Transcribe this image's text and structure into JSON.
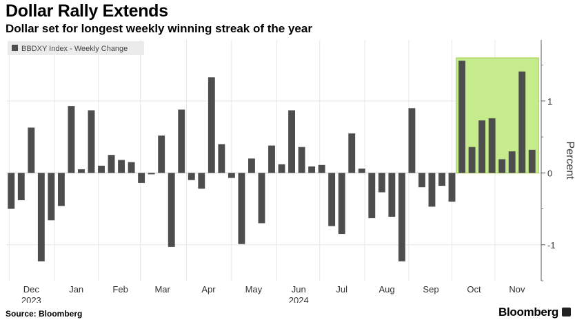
{
  "title": "Dollar Rally Extends",
  "subtitle": "Dollar set for longest weekly winning streak of the year",
  "source": "Source: Bloomberg",
  "brand": "Bloomberg",
  "chart_data": {
    "type": "bar",
    "legend": "BBDXY Index - Weekly Change",
    "legend_position": "top-left",
    "ylabel": "Percent",
    "ylim": [
      -1.5,
      1.85
    ],
    "y_ticks": [
      -1,
      0,
      1
    ],
    "y_tick_labels": [
      "-1",
      "0",
      "1"
    ],
    "bar_color": "#4d4d4d",
    "highlight_color": "#c5eb8d",
    "highlight_border": "#99cc33",
    "highlight_from_index": 45,
    "highlight_to_index": 52,
    "x_ticks": [
      {
        "label": "Dec",
        "year": "2023",
        "week": 2.5
      },
      {
        "label": "Jan",
        "year": "",
        "week": 7
      },
      {
        "label": "Feb",
        "year": "",
        "week": 11.4
      },
      {
        "label": "Mar",
        "year": "",
        "week": 15.6
      },
      {
        "label": "Apr",
        "year": "",
        "week": 20.2
      },
      {
        "label": "May",
        "year": "",
        "week": 24.7
      },
      {
        "label": "Jun",
        "year": "2024",
        "week": 29.2
      },
      {
        "label": "Jul",
        "year": "",
        "week": 33.5
      },
      {
        "label": "Aug",
        "year": "",
        "week": 38
      },
      {
        "label": "Sep",
        "year": "",
        "week": 42.4
      },
      {
        "label": "Oct",
        "year": "",
        "week": 46.7
      },
      {
        "label": "Nov",
        "year": "",
        "week": 51
      }
    ],
    "values": [
      -0.5,
      -0.38,
      0.63,
      -1.23,
      -0.66,
      -0.46,
      0.93,
      0.05,
      0.87,
      0.1,
      0.25,
      0.18,
      0.15,
      -0.14,
      -0.02,
      0.52,
      -1.03,
      0.88,
      -0.1,
      -0.22,
      1.33,
      0.4,
      -0.07,
      -0.99,
      0.2,
      -0.7,
      0.38,
      0.12,
      0.87,
      0.36,
      0.09,
      0.11,
      -0.74,
      -0.85,
      0.55,
      0.06,
      -0.63,
      -0.27,
      -0.61,
      -1.23,
      0.9,
      -0.2,
      -0.47,
      -0.18,
      -0.4,
      1.56,
      0.36,
      0.73,
      0.76,
      0.19,
      0.3,
      1.41,
      0.32
    ]
  }
}
